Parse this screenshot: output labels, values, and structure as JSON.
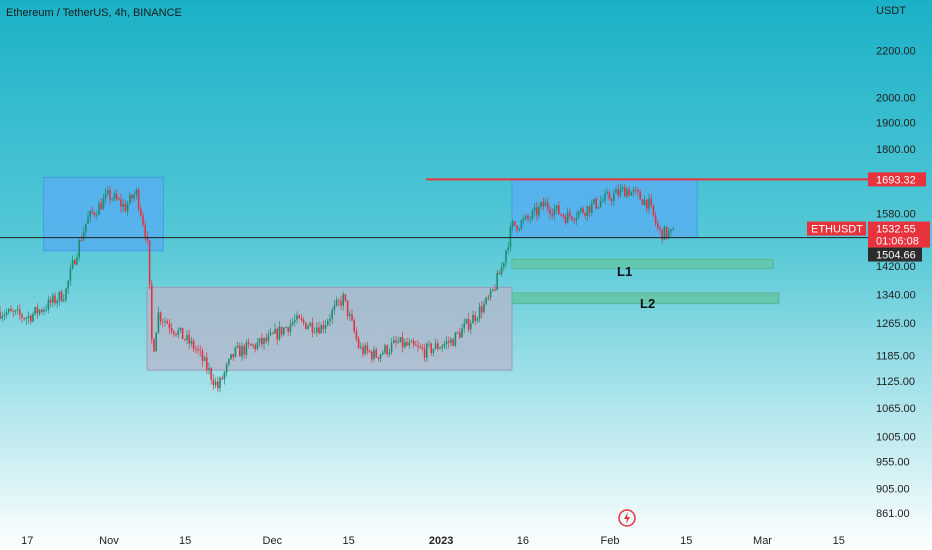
{
  "header": {
    "symbol_title": "Ethereum / TetherUS, 4h, BINANCE"
  },
  "price_axis": {
    "currency": "USDT",
    "ticks": [
      "2200.00",
      "2000.00",
      "1900.00",
      "1800.00",
      "1580.00",
      "1420.00",
      "1340.00",
      "1265.00",
      "1185.00",
      "1125.00",
      "1065.00",
      "1005.00",
      "955.00",
      "905.00",
      "861.00"
    ]
  },
  "time_axis": {
    "ticks": [
      "17",
      "Nov",
      "15",
      "Dec",
      "15",
      "2023",
      "16",
      "Feb",
      "15",
      "Mar",
      "15"
    ]
  },
  "price_labels": {
    "resistance": "1693.32",
    "symbol": "ETHUSDT",
    "last_price": "1532.55",
    "countdown": "01:06:08",
    "horizontal_line": "1504.66"
  },
  "annotations": {
    "level1": "L1",
    "level2": "L2"
  },
  "colors": {
    "bg_top": "#1ab1c7",
    "bg_bottom": "#ffffff",
    "up": "#1f8a6f",
    "down": "#e2323d",
    "resistance": "#e8323c",
    "box_blue": "#59aef0",
    "box_gray": "#b6b6c9",
    "level_green": "#64c4a6"
  },
  "chart_data": {
    "type": "candlestick",
    "title": "Ethereum / TetherUS, 4h, BINANCE",
    "yscale": "log",
    "ylim": [
      840,
      2330
    ],
    "x_range": [
      "2022-10-12",
      "2023-03-20"
    ],
    "series": [
      {
        "name": "ETHUSDT",
        "path_dates": [
          "2022-10-12",
          "2022-10-17",
          "2022-10-20",
          "2022-10-24",
          "2022-10-26",
          "2022-10-28",
          "2022-11-01",
          "2022-11-04",
          "2022-11-06",
          "2022-11-08",
          "2022-11-09",
          "2022-11-10",
          "2022-11-13",
          "2022-11-17",
          "2022-11-21",
          "2022-11-24",
          "2022-11-30",
          "2022-12-05",
          "2022-12-10",
          "2022-12-14",
          "2022-12-17",
          "2022-12-20",
          "2022-12-24",
          "2022-12-29",
          "2023-01-03",
          "2023-01-06",
          "2023-01-10",
          "2023-01-12",
          "2023-01-14",
          "2023-01-17",
          "2023-01-20",
          "2023-01-24",
          "2023-01-27",
          "2023-01-31",
          "2023-02-04",
          "2023-02-08",
          "2023-02-10",
          "2023-02-13"
        ],
        "path_closes": [
          1295,
          1280,
          1305,
          1345,
          1460,
          1560,
          1640,
          1600,
          1650,
          1500,
          1180,
          1290,
          1250,
          1200,
          1110,
          1190,
          1220,
          1270,
          1255,
          1330,
          1200,
          1185,
          1215,
          1195,
          1220,
          1265,
          1330,
          1410,
          1540,
          1560,
          1610,
          1570,
          1590,
          1625,
          1660,
          1615,
          1520,
          1515
        ]
      }
    ],
    "lines": [
      {
        "name": "resistance",
        "price": 1693.32
      },
      {
        "name": "horizontal",
        "price": 1504.66
      }
    ],
    "boxes": [
      {
        "type": "blue",
        "x": [
          "2022-10-20",
          "2022-11-11"
        ],
        "y": [
          1465,
          1700
        ]
      },
      {
        "type": "gray",
        "x": [
          "2022-11-08",
          "2023-01-14"
        ],
        "y": [
          1150,
          1360
        ]
      },
      {
        "type": "blue",
        "x": [
          "2023-01-14",
          "2023-02-17"
        ],
        "y": [
          1505,
          1695
        ]
      },
      {
        "type": "green",
        "label": "L1",
        "x": [
          "2023-01-14",
          "2023-03-03"
        ],
        "y": [
          1413,
          1440
        ]
      },
      {
        "type": "green",
        "label": "L2",
        "x": [
          "2023-01-14",
          "2023-03-04"
        ],
        "y": [
          1316,
          1345
        ]
      }
    ]
  }
}
